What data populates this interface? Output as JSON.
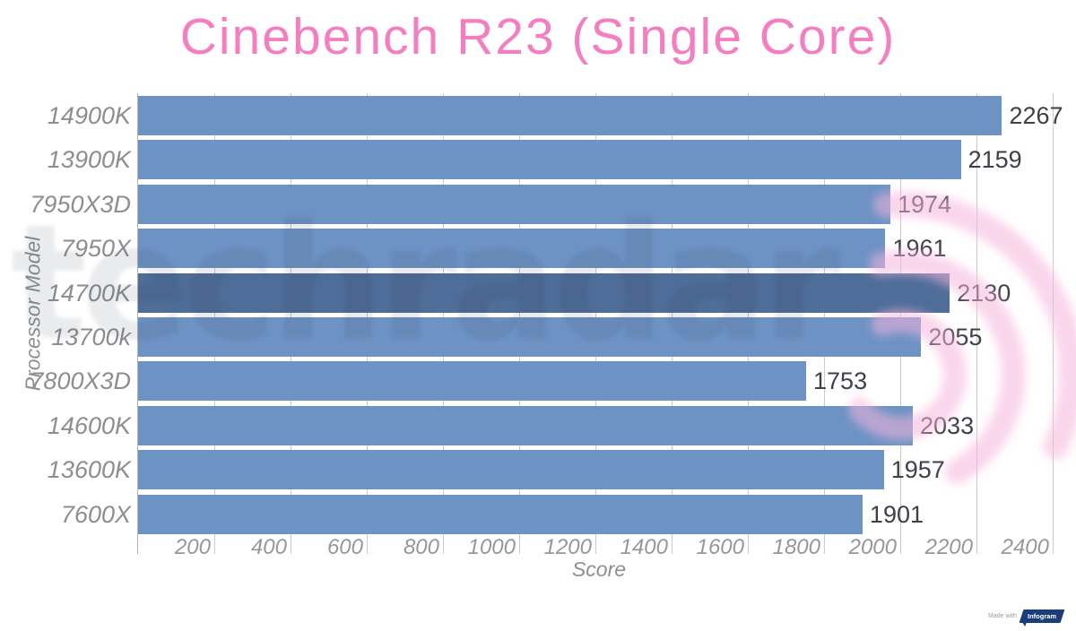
{
  "title": "Cinebench R23 (Single Core)",
  "title_color": "#f47fc0",
  "chart_data": {
    "type": "bar",
    "orientation": "horizontal",
    "title": "Cinebench R23 (Single Core)",
    "xlabel": "Score",
    "ylabel": "Processor Model",
    "categories": [
      "14900K",
      "13900K",
      "7950X3D",
      "7950X",
      "14700K",
      "13700k",
      "7800X3D",
      "14600K",
      "13600K",
      "7600X"
    ],
    "values": [
      2267,
      2159,
      1974,
      1961,
      2130,
      2055,
      1753,
      2033,
      1957,
      1901
    ],
    "highlighted_category": "14700K",
    "xlim": [
      0,
      2400
    ],
    "xticks": [
      200,
      400,
      600,
      800,
      1000,
      1200,
      1400,
      1600,
      1800,
      2000,
      2200,
      2400
    ],
    "grid": true,
    "legend": "none",
    "bar_color": "#6d92c4",
    "highlight_bar_color": "#4e6d99"
  },
  "watermark": {
    "text": "techradar",
    "logo": "radar-arcs",
    "arc_color": "#f6b4db"
  },
  "badge": {
    "made_with": "Made with",
    "brand": "Infogram"
  }
}
